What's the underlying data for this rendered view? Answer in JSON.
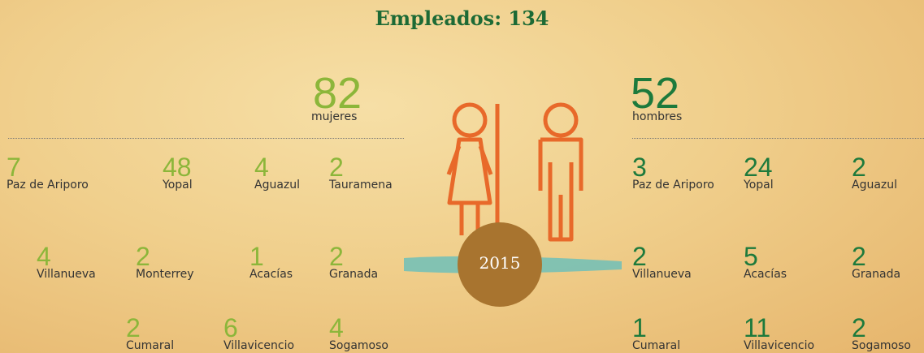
{
  "title": "Empleados: 134",
  "year": 2015,
  "women": {
    "count": 82,
    "label": "mujeres",
    "cities": [
      {
        "count": 7,
        "name": "Paz de Ariporo"
      },
      {
        "count": 48,
        "name": "Yopal"
      },
      {
        "count": 4,
        "name": "Aguazul"
      },
      {
        "count": 2,
        "name": "Tauramena"
      },
      {
        "count": 4,
        "name": "Villanueva"
      },
      {
        "count": 2,
        "name": "Monterrey"
      },
      {
        "count": 1,
        "name": "Acacías"
      },
      {
        "count": 2,
        "name": "Granada"
      },
      {
        "count": 2,
        "name": "Cumaral"
      },
      {
        "count": 6,
        "name": "Villavicencio"
      },
      {
        "count": 4,
        "name": "Sogamoso"
      }
    ]
  },
  "men": {
    "count": 52,
    "label": "hombres",
    "cities": [
      {
        "count": 3,
        "name": "Paz de Ariporo"
      },
      {
        "count": 24,
        "name": "Yopal"
      },
      {
        "count": 2,
        "name": "Aguazul"
      },
      {
        "count": 2,
        "name": "Villanueva"
      },
      {
        "count": 5,
        "name": "Acacías"
      },
      {
        "count": 2,
        "name": "Granada"
      },
      {
        "count": 1,
        "name": "Cumaral"
      },
      {
        "count": 11,
        "name": "Villavicencio"
      },
      {
        "count": 2,
        "name": "Sogamoso"
      }
    ]
  }
}
